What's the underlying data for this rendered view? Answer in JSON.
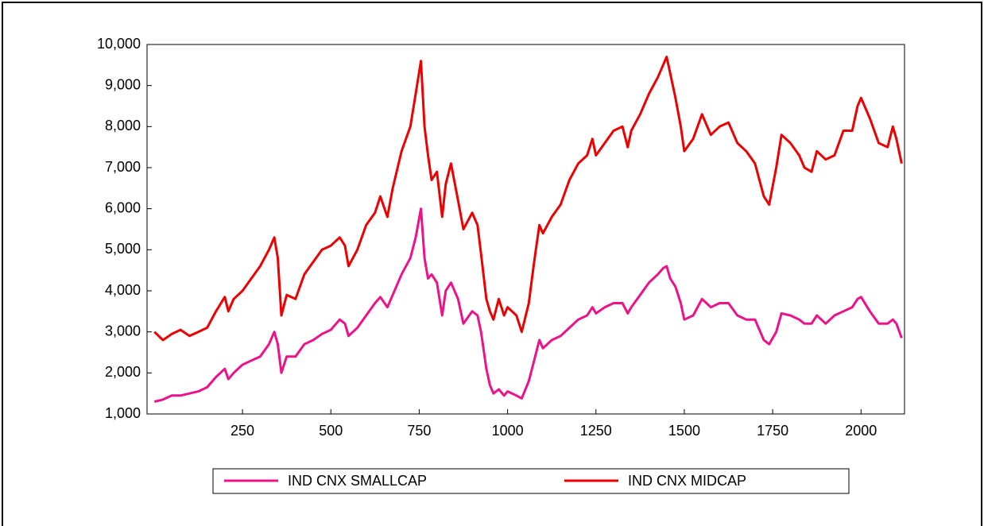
{
  "chart_data": {
    "type": "line",
    "x": [
      1,
      25,
      50,
      75,
      100,
      125,
      150,
      175,
      200,
      210,
      225,
      250,
      275,
      300,
      325,
      340,
      350,
      360,
      375,
      400,
      425,
      450,
      475,
      500,
      525,
      540,
      550,
      575,
      600,
      625,
      640,
      660,
      675,
      700,
      725,
      740,
      755,
      765,
      775,
      785,
      800,
      815,
      825,
      840,
      860,
      875,
      900,
      915,
      925,
      940,
      950,
      960,
      975,
      990,
      1000,
      1025,
      1040,
      1060,
      1075,
      1090,
      1100,
      1125,
      1150,
      1175,
      1200,
      1225,
      1240,
      1250,
      1275,
      1300,
      1325,
      1340,
      1350,
      1375,
      1400,
      1425,
      1440,
      1450,
      1460,
      1475,
      1490,
      1500,
      1525,
      1550,
      1575,
      1600,
      1625,
      1650,
      1675,
      1700,
      1725,
      1740,
      1760,
      1775,
      1800,
      1825,
      1840,
      1860,
      1875,
      1900,
      1925,
      1950,
      1975,
      1990,
      2000,
      2025,
      2050,
      2075,
      2090,
      2100,
      2115
    ],
    "series": [
      {
        "name": "IND CNX SMALLCAP",
        "color": "#ee1188",
        "values": [
          1300,
          1350,
          1450,
          1450,
          1500,
          1550,
          1650,
          1900,
          2100,
          1850,
          2000,
          2200,
          2300,
          2400,
          2700,
          3000,
          2700,
          2000,
          2400,
          2400,
          2700,
          2800,
          2950,
          3050,
          3300,
          3200,
          2900,
          3100,
          3400,
          3700,
          3850,
          3600,
          3900,
          4400,
          4800,
          5300,
          6000,
          4800,
          4300,
          4400,
          4200,
          3400,
          4000,
          4200,
          3800,
          3200,
          3500,
          3400,
          3000,
          2100,
          1700,
          1500,
          1600,
          1450,
          1550,
          1450,
          1380,
          1800,
          2300,
          2800,
          2600,
          2800,
          2900,
          3100,
          3300,
          3400,
          3600,
          3450,
          3600,
          3700,
          3700,
          3450,
          3600,
          3900,
          4200,
          4400,
          4550,
          4600,
          4300,
          4100,
          3700,
          3300,
          3400,
          3800,
          3600,
          3700,
          3700,
          3400,
          3300,
          3300,
          2800,
          2700,
          3000,
          3450,
          3400,
          3300,
          3200,
          3200,
          3400,
          3200,
          3400,
          3500,
          3600,
          3800,
          3850,
          3500,
          3200,
          3200,
          3300,
          3200,
          2850
        ]
      },
      {
        "name": "IND CNX MIDCAP",
        "color": "#ee0000",
        "values": [
          3000,
          2800,
          2950,
          3050,
          2900,
          3000,
          3100,
          3500,
          3850,
          3500,
          3800,
          4000,
          4300,
          4600,
          5000,
          5300,
          4800,
          3400,
          3900,
          3800,
          4400,
          4700,
          5000,
          5100,
          5300,
          5100,
          4600,
          5000,
          5600,
          5900,
          6300,
          5800,
          6500,
          7400,
          8000,
          8800,
          9600,
          8000,
          7300,
          6700,
          6900,
          5800,
          6600,
          7100,
          6200,
          5500,
          5900,
          5600,
          4900,
          3800,
          3500,
          3300,
          3800,
          3400,
          3600,
          3400,
          3000,
          3700,
          4700,
          5600,
          5400,
          5800,
          6100,
          6700,
          7100,
          7300,
          7700,
          7300,
          7600,
          7900,
          8000,
          7500,
          7900,
          8300,
          8800,
          9200,
          9500,
          9700,
          9300,
          8700,
          8000,
          7400,
          7700,
          8300,
          7800,
          8000,
          8100,
          7600,
          7400,
          7100,
          6300,
          6100,
          7000,
          7800,
          7600,
          7300,
          7000,
          6900,
          7400,
          7200,
          7300,
          7900,
          7900,
          8500,
          8700,
          8200,
          7600,
          7500,
          8000,
          7700,
          7100
        ]
      }
    ],
    "xlim": [
      -20,
      2123
    ],
    "xticks": [
      250,
      500,
      750,
      1000,
      1250,
      1500,
      1750,
      2000
    ],
    "ylim": [
      1000,
      10000
    ],
    "yticks": [
      {
        "value": 1000,
        "label": "1,000"
      },
      {
        "value": 2000,
        "label": "2,000"
      },
      {
        "value": 3000,
        "label": "3,000"
      },
      {
        "value": 4000,
        "label": "4,000"
      },
      {
        "value": 5000,
        "label": "5,000"
      },
      {
        "value": 6000,
        "label": "6,000"
      },
      {
        "value": 7000,
        "label": "7,000"
      },
      {
        "value": 8000,
        "label": "8,000"
      },
      {
        "value": 9000,
        "label": "9,000"
      },
      {
        "value": 10000,
        "label": "10,000"
      }
    ],
    "grid": false,
    "legend": "bottom"
  }
}
